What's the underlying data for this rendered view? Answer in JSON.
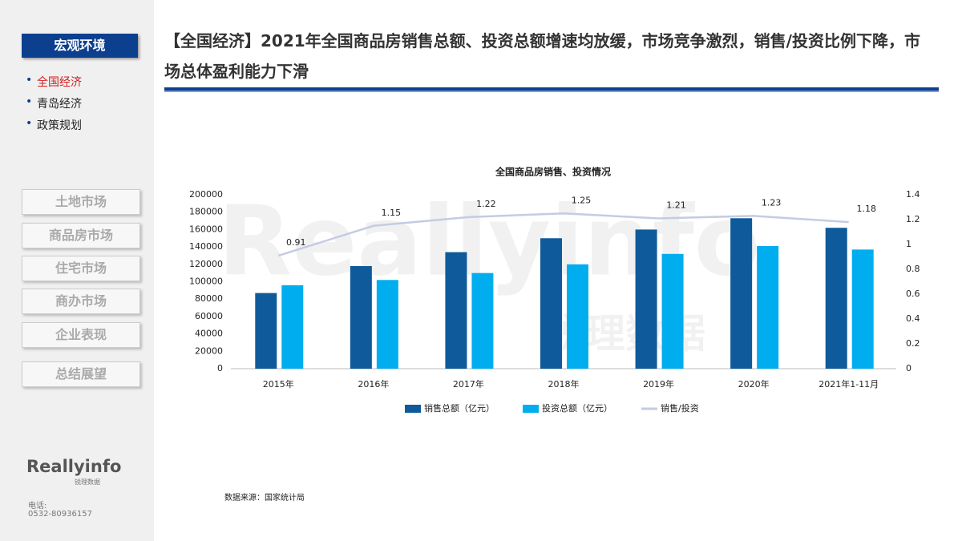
{
  "sidebar": {
    "active_tab": "宏观环境",
    "sub_items": [
      "全国经济",
      "青岛经济",
      "政策规划"
    ],
    "buttons": [
      "土地市场",
      "商品房市场",
      "住宅市场",
      "商办市场",
      "企业表现",
      "总结展望"
    ],
    "logo": "Reallyinfo",
    "logo_sub": "锐理数据",
    "phone_label": "电话:",
    "phone": "0532-80936157"
  },
  "header": {
    "title": "【全国经济】2021年全国商品房销售总额、投资总额增速均放缓，市场竞争激烈，销售/投资比例下降，市场总体盈利能力下滑"
  },
  "watermark": [
    "Reallyinfo",
    "锐理数据"
  ],
  "source": "数据来源：国家统计局",
  "chart_data": {
    "type": "bar",
    "title": "全国商品房销售、投资情况",
    "categories": [
      "2015年",
      "2016年",
      "2017年",
      "2018年",
      "2019年",
      "2020年",
      "2021年1-11月"
    ],
    "series": [
      {
        "name": "销售总额（亿元）",
        "color": "#0f5a9a",
        "values": [
          87000,
          118000,
          134000,
          150000,
          160000,
          173000,
          162000
        ]
      },
      {
        "name": "投资总额（亿元）",
        "color": "#00aeef",
        "values": [
          96000,
          102000,
          110000,
          120000,
          132000,
          141000,
          137000
        ]
      },
      {
        "name": "销售/投资",
        "color": "#c5cbe3",
        "type": "line",
        "axis": "y2",
        "values": [
          0.91,
          1.15,
          1.22,
          1.25,
          1.21,
          1.23,
          1.18
        ]
      }
    ],
    "ylim": [
      0,
      200000
    ],
    "yticks": [
      0,
      20000,
      40000,
      60000,
      80000,
      100000,
      120000,
      140000,
      160000,
      180000,
      200000
    ],
    "y2lim": [
      0,
      1.4
    ],
    "y2ticks": [
      0,
      0.2,
      0.4,
      0.6,
      0.8,
      1,
      1.2,
      1.4
    ],
    "legend": "bottom"
  }
}
